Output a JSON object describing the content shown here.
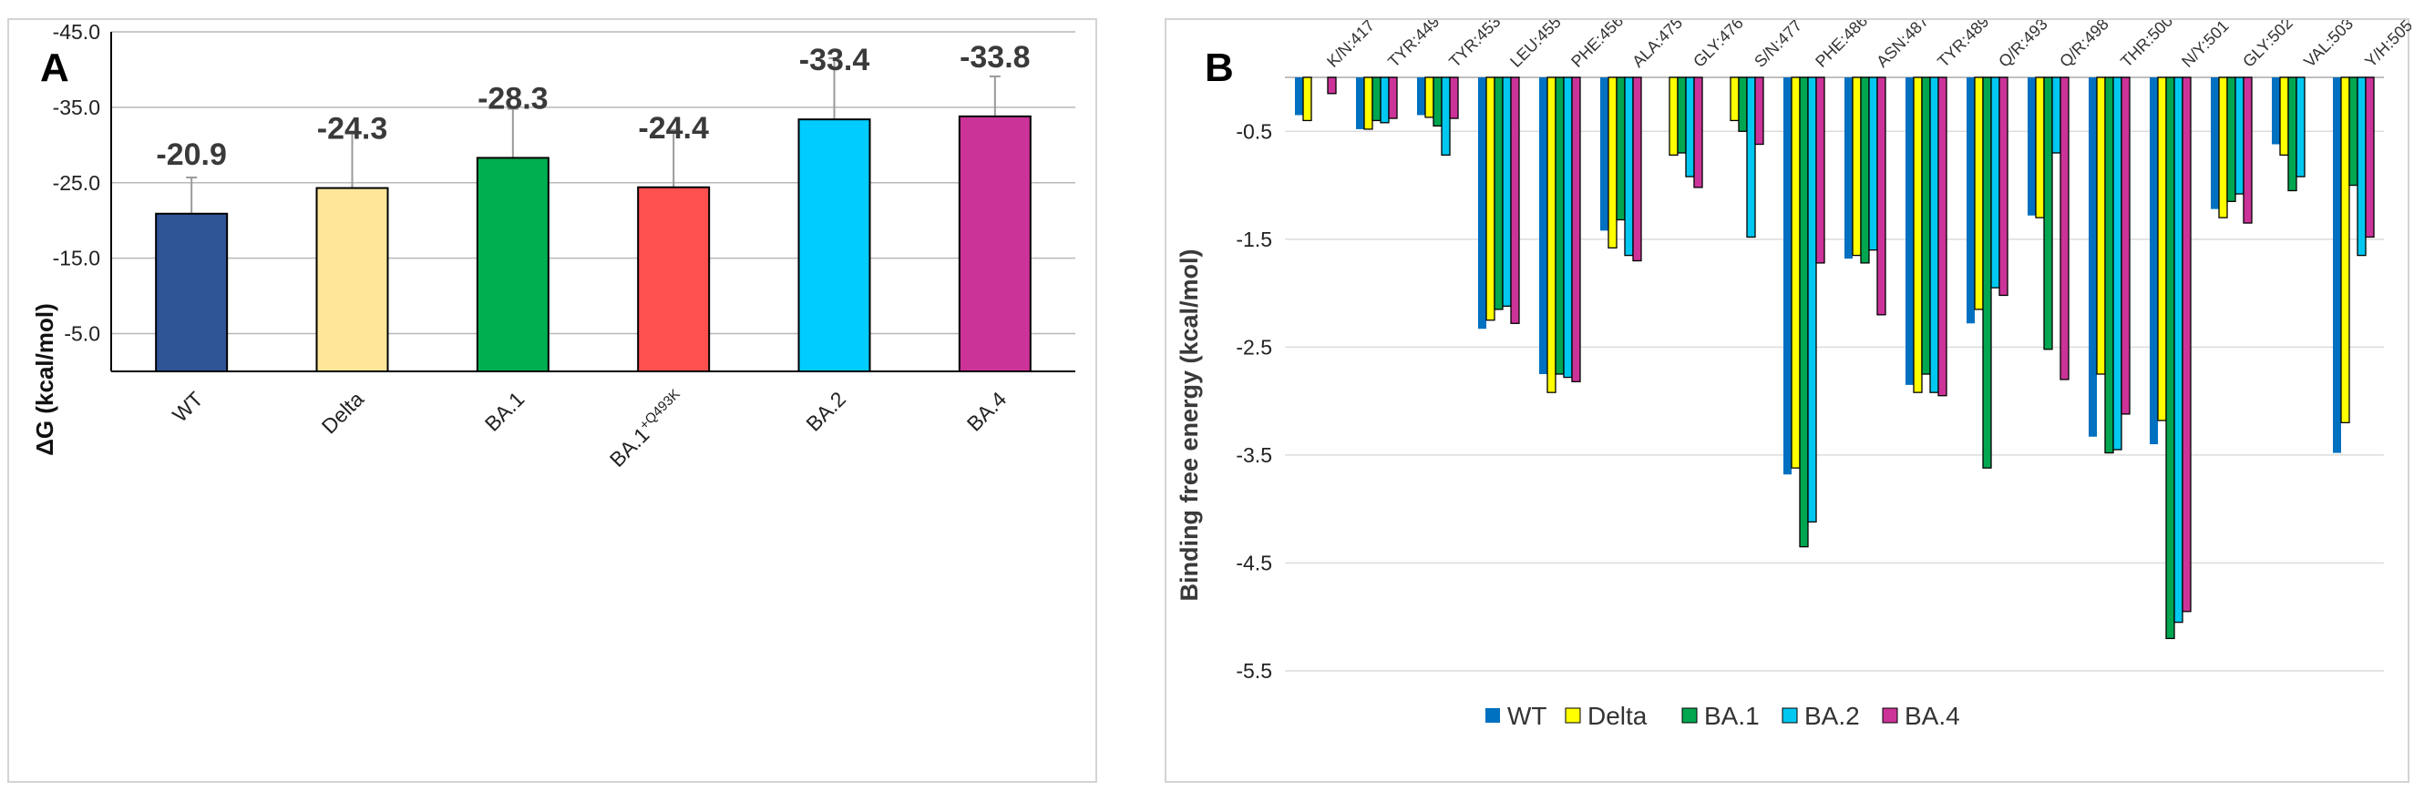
{
  "panels": {
    "a_letter": "A",
    "b_letter": "B"
  },
  "chart_data": [
    {
      "type": "bar",
      "panel": "A",
      "ylabel": "ΔG (kcal/mol)",
      "xlabel": "",
      "ylim": [
        0,
        -45
      ],
      "yticks": [
        -5,
        -15,
        -25,
        -35,
        -45
      ],
      "ytick_labels": [
        "-5.0",
        "-15.0",
        "-25.0",
        "-35.0",
        "-45.0"
      ],
      "grid": true,
      "categories": [
        {
          "main": "WT",
          "sup": ""
        },
        {
          "main": "Delta",
          "sup": ""
        },
        {
          "main": "BA.1",
          "sup": ""
        },
        {
          "main": "BA.1",
          "sup": "+Q493K"
        },
        {
          "main": "BA.2",
          "sup": ""
        },
        {
          "main": "BA.4",
          "sup": ""
        }
      ],
      "values": [
        -20.9,
        -24.3,
        -28.3,
        -24.4,
        -33.4,
        -33.8
      ],
      "value_labels": [
        "-20.9",
        "-24.3",
        "-28.3",
        "-24.4",
        "-33.4",
        "-33.8"
      ],
      "error_upper": [
        -25.7,
        -31.8,
        -34.8,
        -32.0,
        -41.5,
        -39.1
      ],
      "colors": [
        "#2f5597",
        "#ffe699",
        "#00b050",
        "#ff5050",
        "#00ccff",
        "#cc3399"
      ]
    },
    {
      "type": "bar",
      "panel": "B",
      "ylabel": "Binding free energy (kcal/mol)",
      "xlabel": "",
      "ylim": [
        0,
        -5.5
      ],
      "yticks": [
        -0.5,
        -1.5,
        -2.5,
        -3.5,
        -4.5,
        -5.5
      ],
      "ytick_labels": [
        "-0.5",
        "-1.5",
        "-2.5",
        "-3.5",
        "-4.5",
        "-5.5"
      ],
      "grid": true,
      "legend_position": "bottom-center",
      "categories": [
        "K/N:417",
        "TYR:449",
        "TYR:453",
        "LEU:455",
        "PHE:456",
        "ALA:475",
        "GLY:476",
        "S/N:477",
        "PHE:486",
        "ASN:487",
        "TYR:489",
        "Q/R:493",
        "Q/R:498",
        "THR:500",
        "N/Y:501",
        "GLY:502",
        "VAL:503",
        "Y/H:505"
      ],
      "series": [
        {
          "name": "WT",
          "color": "#0070c0",
          "values": [
            -0.35,
            -0.48,
            -0.35,
            -2.33,
            -2.75,
            -1.42,
            0,
            0,
            -3.68,
            -1.68,
            -2.85,
            -2.28,
            -1.28,
            -3.33,
            -3.4,
            -1.22,
            -0.62,
            -3.48
          ]
        },
        {
          "name": "Delta",
          "color": "#ffff00",
          "values": [
            -0.4,
            -0.48,
            -0.37,
            -2.25,
            -2.92,
            -1.58,
            -0.72,
            -0.4,
            -3.62,
            -1.65,
            -2.92,
            -2.15,
            -1.3,
            -2.75,
            -3.18,
            -1.3,
            -0.72,
            -3.2
          ]
        },
        {
          "name": "BA.1",
          "color": "#00a650",
          "values": [
            0,
            -0.4,
            -0.45,
            -2.15,
            -2.75,
            -1.32,
            -0.7,
            -0.5,
            -4.35,
            -1.72,
            -2.75,
            -3.62,
            -2.52,
            -3.48,
            -5.2,
            -1.15,
            -1.05,
            -1.0
          ]
        },
        {
          "name": "BA.2",
          "color": "#00c8f0",
          "values": [
            0,
            -0.42,
            -0.72,
            -2.12,
            -2.78,
            -1.65,
            -0.92,
            -1.48,
            -4.12,
            -1.6,
            -2.92,
            -1.95,
            -0.7,
            -3.45,
            -5.05,
            -1.08,
            -0.92,
            -1.65
          ]
        },
        {
          "name": "BA.4",
          "color": "#cc3399",
          "values": [
            -0.15,
            -0.38,
            -0.38,
            -2.28,
            -2.82,
            -1.7,
            -1.02,
            -0.62,
            -1.72,
            -2.2,
            -2.95,
            -2.02,
            -2.8,
            -3.12,
            -4.95,
            -1.35,
            0,
            -1.48
          ]
        }
      ]
    }
  ]
}
